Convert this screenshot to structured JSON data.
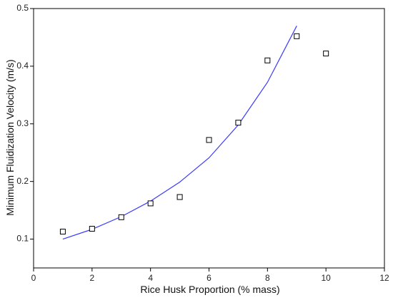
{
  "chart_data": {
    "type": "scatter",
    "title": "",
    "xlabel": "Rice Husk Proportion (% mass)",
    "ylabel": "Minimum Fluidization Velocity (m/s)",
    "xlim": [
      0,
      12
    ],
    "ylim": [
      0.05,
      0.5
    ],
    "xticks": [
      "0",
      "2",
      "4",
      "6",
      "8",
      "10",
      "12"
    ],
    "yticks": [
      "0.1",
      "0.2",
      "0.3",
      "0.4",
      "0.5"
    ],
    "grid": false,
    "legend": "none",
    "series": [
      {
        "kind": "scatter",
        "marker": "open-square",
        "color": "#000000",
        "points": [
          {
            "x": 1,
            "y": 0.113
          },
          {
            "x": 2,
            "y": 0.118
          },
          {
            "x": 3,
            "y": 0.138
          },
          {
            "x": 4,
            "y": 0.162
          },
          {
            "x": 5,
            "y": 0.173
          },
          {
            "x": 6,
            "y": 0.272
          },
          {
            "x": 7,
            "y": 0.302
          },
          {
            "x": 8,
            "y": 0.41
          },
          {
            "x": 9,
            "y": 0.452
          },
          {
            "x": 10,
            "y": 0.422
          }
        ]
      },
      {
        "kind": "line",
        "color": "#3a3aff",
        "points": [
          {
            "x": 1,
            "y": 0.1
          },
          {
            "x": 2,
            "y": 0.117
          },
          {
            "x": 3,
            "y": 0.139
          },
          {
            "x": 4,
            "y": 0.166
          },
          {
            "x": 5,
            "y": 0.199
          },
          {
            "x": 6,
            "y": 0.241
          },
          {
            "x": 7,
            "y": 0.298
          },
          {
            "x": 8,
            "y": 0.372
          },
          {
            "x": 9,
            "y": 0.47
          }
        ]
      }
    ]
  }
}
